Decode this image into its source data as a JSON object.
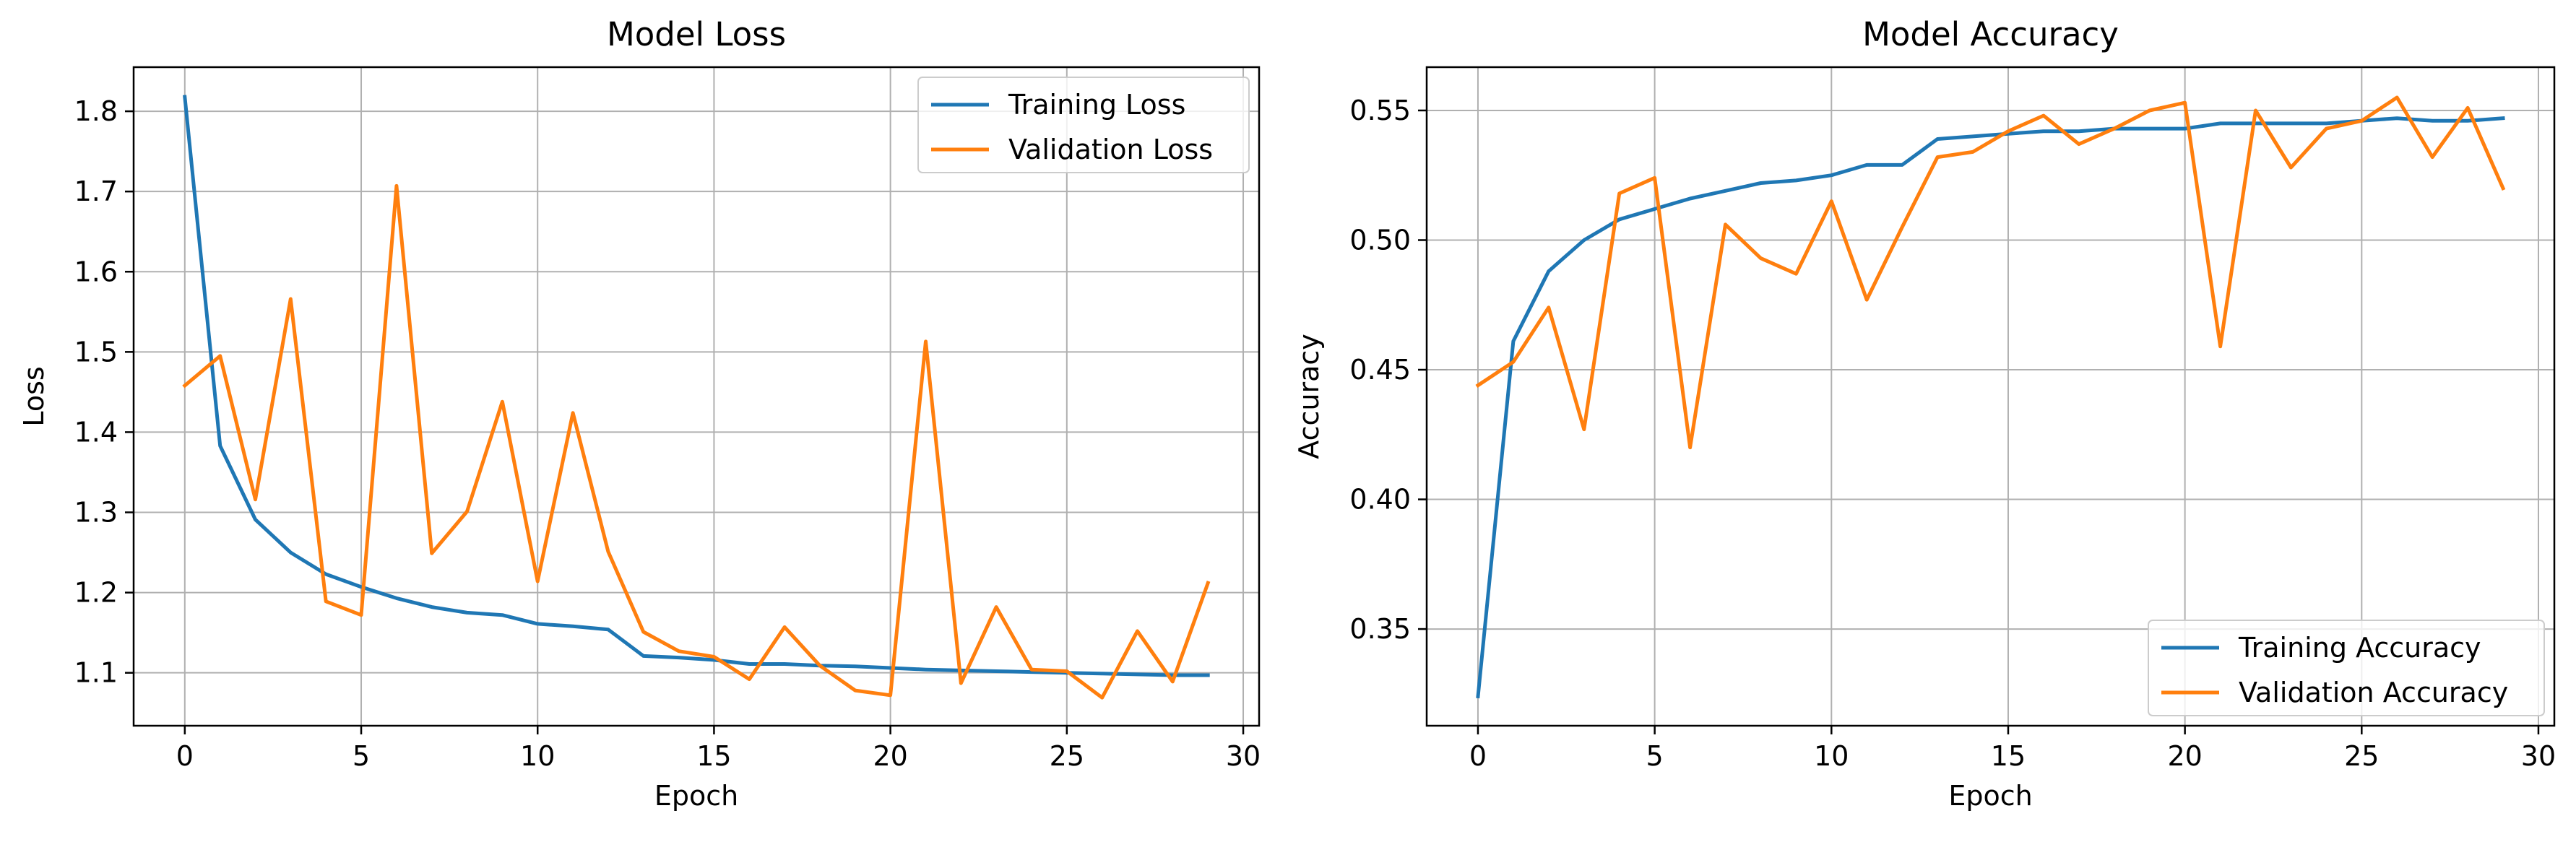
{
  "chart_data": [
    {
      "type": "line",
      "title": "Model Loss",
      "xlabel": "Epoch",
      "ylabel": "Loss",
      "xlim": [
        -1.45,
        30.45
      ],
      "ylim": [
        1.034,
        1.855
      ],
      "x_ticks": [
        0,
        5,
        10,
        15,
        20,
        25,
        30
      ],
      "x_tick_labels": [
        "0",
        "5",
        "10",
        "15",
        "20",
        "25",
        "30"
      ],
      "y_ticks": [
        1.1,
        1.2,
        1.3,
        1.4,
        1.5,
        1.6,
        1.7,
        1.8
      ],
      "y_tick_labels": [
        "1.1",
        "1.2",
        "1.3",
        "1.4",
        "1.5",
        "1.6",
        "1.7",
        "1.8"
      ],
      "grid": true,
      "legend_position": "upper right",
      "x": [
        0,
        1,
        2,
        3,
        4,
        5,
        6,
        7,
        8,
        9,
        10,
        11,
        12,
        13,
        14,
        15,
        16,
        17,
        18,
        19,
        20,
        21,
        22,
        23,
        24,
        25,
        26,
        27,
        28,
        29
      ],
      "series": [
        {
          "name": "Training Loss",
          "color": "#1f77b4",
          "values": [
            1.818,
            1.383,
            1.291,
            1.25,
            1.223,
            1.207,
            1.193,
            1.182,
            1.175,
            1.172,
            1.161,
            1.158,
            1.154,
            1.121,
            1.119,
            1.116,
            1.111,
            1.111,
            1.109,
            1.108,
            1.106,
            1.104,
            1.103,
            1.102,
            1.101,
            1.1,
            1.099,
            1.098,
            1.097,
            1.097
          ]
        },
        {
          "name": "Validation Loss",
          "color": "#ff7f0e",
          "values": [
            1.458,
            1.495,
            1.316,
            1.566,
            1.189,
            1.172,
            1.707,
            1.249,
            1.301,
            1.438,
            1.214,
            1.424,
            1.251,
            1.151,
            1.127,
            1.12,
            1.092,
            1.157,
            1.109,
            1.078,
            1.072,
            1.513,
            1.087,
            1.182,
            1.104,
            1.102,
            1.069,
            1.152,
            1.089,
            1.212
          ]
        }
      ]
    },
    {
      "type": "line",
      "title": "Model Accuracy",
      "xlabel": "Epoch",
      "ylabel": "Accuracy",
      "xlim": [
        -1.45,
        30.45
      ],
      "ylim": [
        0.3127,
        0.5667
      ],
      "x_ticks": [
        0,
        5,
        10,
        15,
        20,
        25,
        30
      ],
      "x_tick_labels": [
        "0",
        "5",
        "10",
        "15",
        "20",
        "25",
        "30"
      ],
      "y_ticks": [
        0.35,
        0.4,
        0.45,
        0.5,
        0.55
      ],
      "y_tick_labels": [
        "0.35",
        "0.40",
        "0.45",
        "0.50",
        "0.55"
      ],
      "grid": true,
      "legend_position": "lower right",
      "x": [
        0,
        1,
        2,
        3,
        4,
        5,
        6,
        7,
        8,
        9,
        10,
        11,
        12,
        13,
        14,
        15,
        16,
        17,
        18,
        19,
        20,
        21,
        22,
        23,
        24,
        25,
        26,
        27,
        28,
        29
      ],
      "series": [
        {
          "name": "Training Accuracy",
          "color": "#1f77b4",
          "values": [
            0.324,
            0.461,
            0.488,
            0.5,
            0.508,
            0.512,
            0.516,
            0.519,
            0.522,
            0.523,
            0.525,
            0.529,
            0.529,
            0.539,
            0.54,
            0.541,
            0.542,
            0.542,
            0.543,
            0.543,
            0.543,
            0.545,
            0.545,
            0.545,
            0.545,
            0.546,
            0.547,
            0.546,
            0.546,
            0.547
          ]
        },
        {
          "name": "Validation Accuracy",
          "color": "#ff7f0e",
          "values": [
            0.444,
            0.453,
            0.474,
            0.427,
            0.518,
            0.524,
            0.42,
            0.506,
            0.493,
            0.487,
            0.515,
            0.477,
            0.505,
            0.532,
            0.534,
            0.542,
            0.548,
            0.537,
            0.543,
            0.55,
            0.553,
            0.459,
            0.55,
            0.528,
            0.543,
            0.546,
            0.555,
            0.532,
            0.551,
            0.52
          ]
        }
      ]
    }
  ]
}
